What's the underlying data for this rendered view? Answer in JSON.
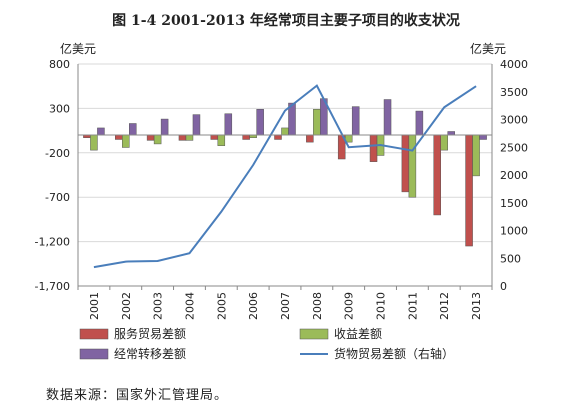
{
  "chart_data": {
    "type": "bar",
    "title": "图 1-4    2001-2013 年经常项目主要子项目的收支状况",
    "ylabel_left": "亿美元",
    "ylabel_right": "亿美元",
    "categories": [
      "2001",
      "2002",
      "2003",
      "2004",
      "2005",
      "2006",
      "2007",
      "2008",
      "2009",
      "2010",
      "2011",
      "2012",
      "2013"
    ],
    "ylim_left": [
      -1700,
      800
    ],
    "yticks_left": [
      800,
      300,
      -200,
      -700,
      -1200,
      -1700
    ],
    "ylim_right": [
      0,
      4000
    ],
    "yticks_right": [
      4000,
      3500,
      3000,
      2500,
      2000,
      1500,
      1000,
      500,
      0
    ],
    "series": [
      {
        "name": "服务贸易差额",
        "axis": "left",
        "kind": "bar",
        "color": "#c0504d",
        "values": [
          -30,
          -50,
          -60,
          -60,
          -50,
          -50,
          -50,
          -80,
          -270,
          -300,
          -640,
          -900,
          -1250
        ]
      },
      {
        "name": "收益差额",
        "axis": "left",
        "kind": "bar",
        "color": "#9bbb59",
        "values": [
          -170,
          -140,
          -100,
          -60,
          -120,
          -30,
          80,
          290,
          -80,
          -230,
          -700,
          -170,
          -460
        ]
      },
      {
        "name": "经常转移差额",
        "axis": "left",
        "kind": "bar",
        "color": "#8064a2",
        "values": [
          80,
          130,
          180,
          230,
          240,
          290,
          360,
          410,
          320,
          400,
          270,
          40,
          -50
        ]
      },
      {
        "name": "货物贸易差额（右轴）",
        "axis": "right",
        "kind": "line",
        "color": "#4a7ebb",
        "values": [
          340,
          440,
          450,
          590,
          1340,
          2180,
          3160,
          3610,
          2500,
          2540,
          2440,
          3220,
          3600
        ]
      }
    ],
    "legend_position": "bottom",
    "grid": "horizontal"
  },
  "source_text": "数据来源：国家外汇管理局。"
}
